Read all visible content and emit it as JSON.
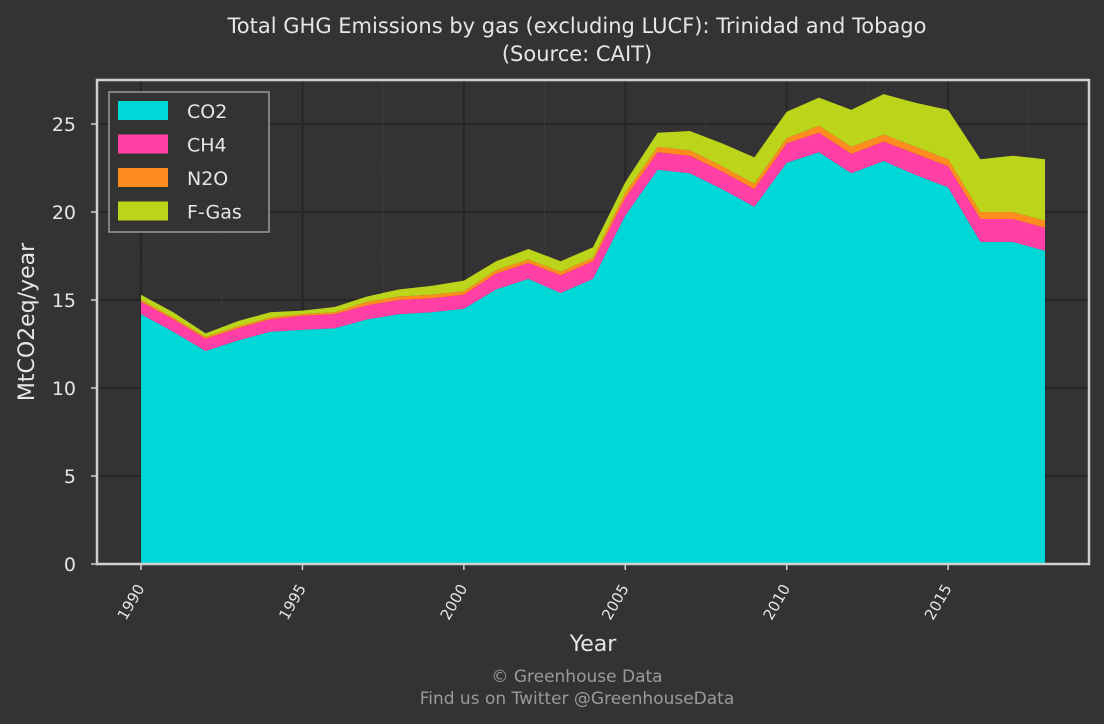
{
  "chart_data": {
    "type": "area",
    "stacked": true,
    "title": "Total GHG Emissions by gas (excluding LUCF): Trinidad and Tobago",
    "subtitle": "(Source: CAIT)",
    "xlabel": "Year",
    "ylabel": "MtCO2eq/year",
    "xlim": [
      1990,
      2018
    ],
    "ylim": [
      0,
      27.5
    ],
    "xticks": [
      1990,
      1995,
      2000,
      2005,
      2010,
      2015
    ],
    "yticks": [
      0,
      5,
      10,
      15,
      20,
      25
    ],
    "grid": true,
    "legend_position": "top-left",
    "x": [
      1990,
      1991,
      1992,
      1993,
      1994,
      1995,
      1996,
      1997,
      1998,
      1999,
      2000,
      2001,
      2002,
      2003,
      2004,
      2005,
      2006,
      2007,
      2008,
      2009,
      2010,
      2011,
      2012,
      2013,
      2014,
      2015,
      2016,
      2017,
      2018
    ],
    "series": [
      {
        "name": "CO2",
        "color": "#00d7d7",
        "values": [
          14.2,
          13.2,
          12.1,
          12.7,
          13.2,
          13.3,
          13.4,
          13.9,
          14.2,
          14.3,
          14.5,
          15.6,
          16.2,
          15.4,
          16.2,
          19.8,
          22.4,
          22.2,
          21.3,
          20.3,
          22.8,
          23.4,
          22.2,
          22.9,
          22.1,
          21.4,
          18.3,
          18.3,
          17.8
        ]
      },
      {
        "name": "CH4",
        "color": "#ff3fa5",
        "values": [
          0.7,
          0.7,
          0.7,
          0.7,
          0.7,
          0.8,
          0.8,
          0.8,
          0.8,
          0.8,
          0.8,
          0.9,
          0.9,
          1.0,
          1.0,
          1.0,
          1.0,
          1.0,
          1.0,
          1.0,
          1.1,
          1.1,
          1.1,
          1.1,
          1.2,
          1.2,
          1.3,
          1.3,
          1.3
        ]
      },
      {
        "name": "N2O",
        "color": "#ff8c1e",
        "values": [
          0.1,
          0.1,
          0.1,
          0.1,
          0.1,
          0.1,
          0.1,
          0.2,
          0.2,
          0.2,
          0.2,
          0.2,
          0.2,
          0.2,
          0.2,
          0.3,
          0.3,
          0.3,
          0.3,
          0.3,
          0.3,
          0.4,
          0.4,
          0.4,
          0.4,
          0.4,
          0.4,
          0.4,
          0.4
        ]
      },
      {
        "name": "F-Gas",
        "color": "#bcd419",
        "values": [
          0.3,
          0.3,
          0.2,
          0.3,
          0.3,
          0.2,
          0.3,
          0.3,
          0.4,
          0.5,
          0.6,
          0.5,
          0.6,
          0.6,
          0.6,
          0.6,
          0.8,
          1.1,
          1.3,
          1.5,
          1.5,
          1.6,
          2.1,
          2.3,
          2.5,
          2.8,
          3.0,
          3.2,
          3.5
        ]
      }
    ]
  },
  "footer": {
    "line1": "© Greenhouse Data",
    "line2": "Find us on Twitter @GreenhouseData"
  }
}
